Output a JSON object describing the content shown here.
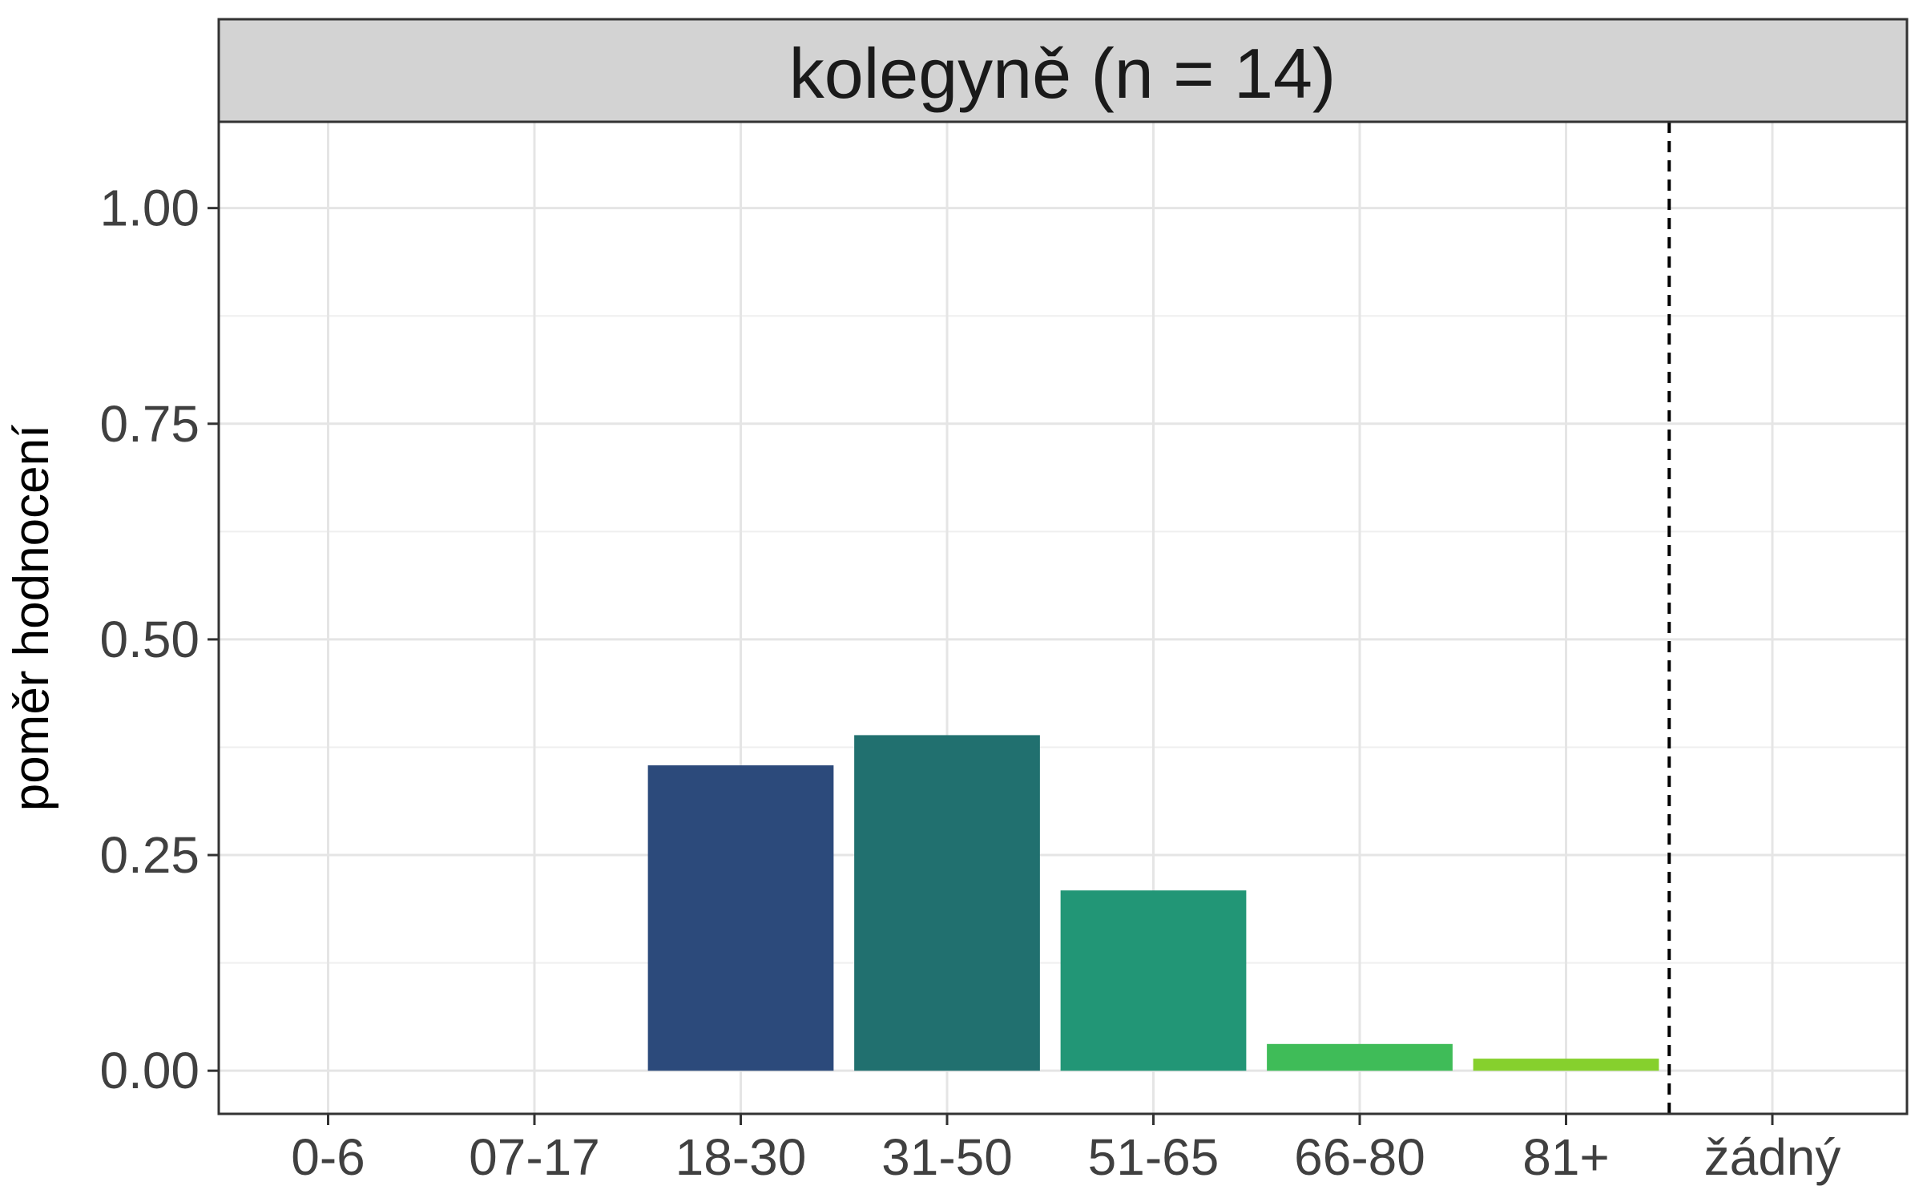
{
  "chart_data": {
    "type": "bar",
    "panel_title": "kolegyně (n = 14)",
    "categories": [
      "0-6",
      "07-17",
      "18-30",
      "31-50",
      "51-65",
      "66-80",
      "81+",
      "žádný"
    ],
    "values": [
      0,
      0,
      0.354,
      0.389,
      0.209,
      0.031,
      0.014,
      0
    ],
    "colors": [
      "#440154",
      "#46307E",
      "#2C4A7B",
      "#21706F",
      "#229676",
      "#3FBC58",
      "#86D02D",
      "#FDE725"
    ],
    "ylabel": "poměr hodnocení",
    "xlabel": "",
    "ylim": [
      -0.05,
      1.1
    ],
    "yticks": [
      "0.00",
      "0.25",
      "0.50",
      "0.75",
      "1.00"
    ],
    "ytick_values": [
      0,
      0.25,
      0.5,
      0.75,
      1.0
    ],
    "reference_line": {
      "style": "dashed",
      "between": [
        "81+",
        "žádný"
      ]
    },
    "grid": true,
    "legend": "none"
  }
}
